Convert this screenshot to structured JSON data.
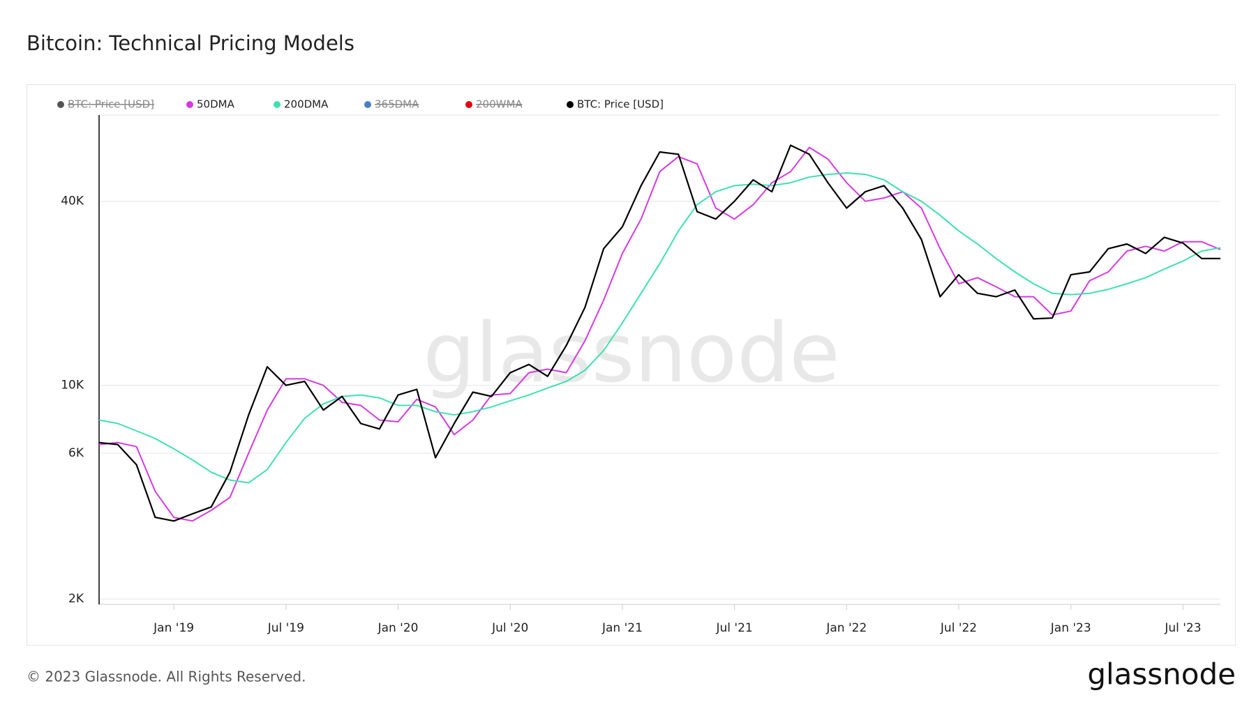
{
  "title": "Bitcoin: Technical Pricing Models",
  "footer": "© 2023 Glassnode. All Rights Reserved.",
  "logo": "glassnode",
  "watermark": "glassnode",
  "chart_data": {
    "type": "line",
    "log_scale": true,
    "grid": true,
    "x": [
      "2018-09",
      "2018-10",
      "2018-11",
      "2018-12",
      "2019-01",
      "2019-02",
      "2019-03",
      "2019-04",
      "2019-05",
      "2019-06",
      "2019-07",
      "2019-08",
      "2019-09",
      "2019-10",
      "2019-11",
      "2019-12",
      "2020-01",
      "2020-02",
      "2020-03",
      "2020-04",
      "2020-05",
      "2020-06",
      "2020-07",
      "2020-08",
      "2020-09",
      "2020-10",
      "2020-11",
      "2020-12",
      "2021-01",
      "2021-02",
      "2021-03",
      "2021-04",
      "2021-05",
      "2021-06",
      "2021-07",
      "2021-08",
      "2021-09",
      "2021-10",
      "2021-11",
      "2021-12",
      "2022-01",
      "2022-02",
      "2022-03",
      "2022-04",
      "2022-05",
      "2022-06",
      "2022-07",
      "2022-08",
      "2022-09",
      "2022-10",
      "2022-11",
      "2022-12",
      "2023-01",
      "2023-02",
      "2023-03",
      "2023-04",
      "2023-05",
      "2023-06",
      "2023-07",
      "2023-08",
      "2023-09"
    ],
    "xlim": [
      "2018-09",
      "2023-09"
    ],
    "xticks": [
      {
        "value": "2019-01",
        "label": "Jan '19"
      },
      {
        "value": "2019-07",
        "label": "Jul '19"
      },
      {
        "value": "2020-01",
        "label": "Jan '20"
      },
      {
        "value": "2020-07",
        "label": "Jul '20"
      },
      {
        "value": "2021-01",
        "label": "Jan '21"
      },
      {
        "value": "2021-07",
        "label": "Jul '21"
      },
      {
        "value": "2022-01",
        "label": "Jan '22"
      },
      {
        "value": "2022-07",
        "label": "Jul '22"
      },
      {
        "value": "2023-01",
        "label": "Jan '23"
      },
      {
        "value": "2023-07",
        "label": "Jul '23"
      }
    ],
    "ylim": [
      1920,
      76600
    ],
    "yticks": [
      {
        "value": 2000,
        "label": "2K"
      },
      {
        "value": 6000,
        "label": "6K"
      },
      {
        "value": 10000,
        "label": "10K"
      },
      {
        "value": 40000,
        "label": "40K"
      }
    ],
    "series": [
      {
        "name": "BTC: Price [USD]",
        "color": "#555555",
        "visible": false
      },
      {
        "name": "50DMA",
        "color": "#d53ae0",
        "visible": true,
        "values": [
          6400,
          6500,
          6300,
          4500,
          3700,
          3600,
          3900,
          4300,
          6000,
          8300,
          10500,
          10500,
          10000,
          8800,
          8600,
          7700,
          7600,
          9000,
          8500,
          6900,
          7700,
          9300,
          9400,
          11000,
          11300,
          11000,
          14000,
          19000,
          27000,
          35000,
          50000,
          56000,
          53000,
          38000,
          35000,
          39000,
          46000,
          50000,
          60000,
          55000,
          46000,
          40000,
          41000,
          43000,
          38000,
          28000,
          21500,
          22500,
          21000,
          19500,
          19500,
          17000,
          17500,
          22000,
          23500,
          27500,
          28500,
          27500,
          29500,
          29500,
          27800
        ]
      },
      {
        "name": "200DMA",
        "color": "#3fe0b0",
        "visible": true,
        "values": [
          7700,
          7500,
          7100,
          6700,
          6200,
          5700,
          5200,
          4900,
          4800,
          5300,
          6500,
          7800,
          8700,
          9200,
          9300,
          9100,
          8600,
          8600,
          8200,
          8000,
          8200,
          8500,
          8900,
          9300,
          9800,
          10300,
          11200,
          13000,
          16000,
          20000,
          25000,
          32000,
          39000,
          43000,
          45000,
          45500,
          45000,
          46000,
          48000,
          49000,
          49500,
          49000,
          47000,
          43000,
          40000,
          36000,
          32000,
          29000,
          26000,
          23500,
          21500,
          20000,
          19800,
          20000,
          20600,
          21500,
          22500,
          24000,
          25500,
          27500,
          28200
        ]
      },
      {
        "name": "365DMA",
        "color": "#4a7fc1",
        "visible": false
      },
      {
        "name": "200WMA",
        "color": "#e8000b",
        "visible": false
      },
      {
        "name": "BTC: Price [USD]",
        "color": "#000000",
        "visible": true,
        "values": [
          6500,
          6400,
          5500,
          3700,
          3600,
          3800,
          4000,
          5200,
          8000,
          11500,
          10000,
          10300,
          8300,
          9200,
          7500,
          7200,
          9300,
          9700,
          5800,
          7500,
          9500,
          9200,
          11000,
          11700,
          10700,
          13500,
          18000,
          28000,
          33000,
          45000,
          58000,
          57000,
          37000,
          35000,
          40000,
          47000,
          43000,
          61000,
          57000,
          46000,
          38000,
          43000,
          45000,
          38000,
          30000,
          19500,
          23000,
          20000,
          19500,
          20500,
          16500,
          16600,
          23000,
          23500,
          28000,
          29000,
          27000,
          30500,
          29200,
          26000,
          26000
        ]
      }
    ]
  }
}
